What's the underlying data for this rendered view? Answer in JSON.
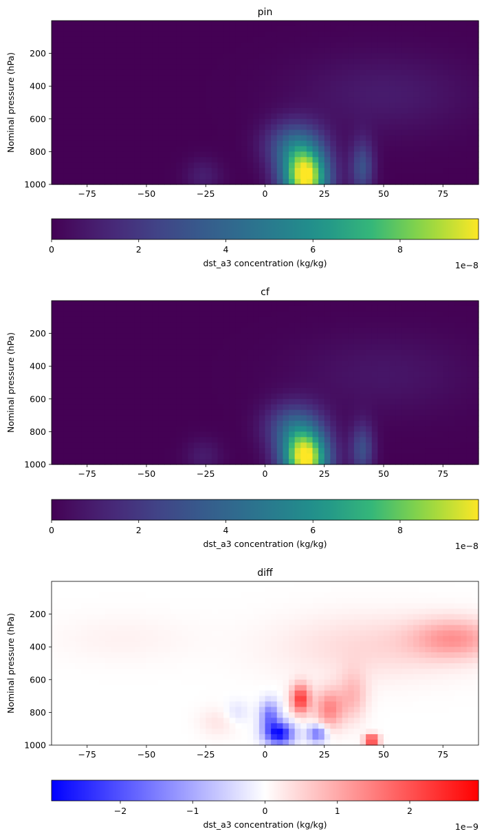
{
  "chart_data": [
    {
      "type": "heatmap",
      "title": "pin",
      "xlabel": "",
      "ylabel": "Nominal pressure (hPa)",
      "xlim": [
        -90,
        90
      ],
      "ylim": [
        1000,
        0
      ],
      "xticks": [
        -75,
        -50,
        -25,
        0,
        25,
        50,
        75
      ],
      "yticks": [
        200,
        400,
        600,
        800,
        1000
      ],
      "colormap": "viridis",
      "colorbar": {
        "label": "dst_a3 concentration (kg/kg)",
        "range": [
          0,
          9.8
        ],
        "ticks": [
          0,
          2,
          4,
          6,
          8
        ],
        "scale_label": "1e−8"
      },
      "grid": false,
      "hotspots": [
        {
          "lat": 17,
          "p": 960,
          "value": 9.8,
          "lat_spread": 10,
          "p_spread": 180
        },
        {
          "lat": 12,
          "p": 760,
          "value": 3.4,
          "lat_spread": 12,
          "p_spread": 150
        },
        {
          "lat": 41,
          "p": 900,
          "value": 3.0,
          "lat_spread": 5,
          "p_spread": 170
        },
        {
          "lat": -26,
          "p": 950,
          "value": 1.0,
          "lat_spread": 8,
          "p_spread": 110
        },
        {
          "lat": 50,
          "p": 450,
          "value": 0.9,
          "lat_spread": 38,
          "p_spread": 250
        }
      ]
    },
    {
      "type": "heatmap",
      "title": "cf",
      "xlabel": "",
      "ylabel": "Nominal pressure (hPa)",
      "xlim": [
        -90,
        90
      ],
      "ylim": [
        1000,
        0
      ],
      "xticks": [
        -75,
        -50,
        -25,
        0,
        25,
        50,
        75
      ],
      "yticks": [
        200,
        400,
        600,
        800,
        1000
      ],
      "colormap": "viridis",
      "colorbar": {
        "label": "dst_a3 concentration (kg/kg)",
        "range": [
          0,
          9.8
        ],
        "ticks": [
          0,
          2,
          4,
          6,
          8
        ],
        "scale_label": "1e−8"
      },
      "grid": false,
      "hotspots": [
        {
          "lat": 17,
          "p": 965,
          "value": 9.8,
          "lat_spread": 10,
          "p_spread": 170
        },
        {
          "lat": 12,
          "p": 770,
          "value": 3.2,
          "lat_spread": 12,
          "p_spread": 150
        },
        {
          "lat": 41,
          "p": 910,
          "value": 2.9,
          "lat_spread": 5,
          "p_spread": 160
        },
        {
          "lat": -26,
          "p": 950,
          "value": 0.9,
          "lat_spread": 8,
          "p_spread": 110
        },
        {
          "lat": 50,
          "p": 450,
          "value": 0.7,
          "lat_spread": 38,
          "p_spread": 250
        }
      ]
    },
    {
      "type": "heatmap",
      "title": "diff",
      "xlabel": "",
      "ylabel": "Nominal pressure (hPa)",
      "xlim": [
        -90,
        90
      ],
      "ylim": [
        1000,
        0
      ],
      "xticks": [
        -75,
        -50,
        -25,
        0,
        25,
        50,
        75
      ],
      "yticks": [
        200,
        400,
        600,
        800,
        1000
      ],
      "colormap": "bwr",
      "colorbar": {
        "label": "dst_a3 concentration (kg/kg)",
        "range": [
          -2.95,
          2.95
        ],
        "ticks": [
          -2,
          -1,
          0,
          1,
          2
        ],
        "scale_label": "1e−9"
      },
      "grid": false,
      "hotspots": [
        {
          "lat": 15,
          "p": 720,
          "value": 2.3,
          "lat_spread": 4,
          "p_spread": 90
        },
        {
          "lat": 27,
          "p": 780,
          "value": 1.4,
          "lat_spread": 6,
          "p_spread": 120
        },
        {
          "lat": 45,
          "p": 970,
          "value": 2.6,
          "lat_spread": 3,
          "p_spread": 35
        },
        {
          "lat": 37,
          "p": 700,
          "value": 0.8,
          "lat_spread": 6,
          "p_spread": 150
        },
        {
          "lat": 80,
          "p": 350,
          "value": 1.1,
          "lat_spread": 18,
          "p_spread": 120
        },
        {
          "lat": 45,
          "p": 400,
          "value": 0.45,
          "lat_spread": 40,
          "p_spread": 200
        },
        {
          "lat": -20,
          "p": 860,
          "value": 0.3,
          "lat_spread": 8,
          "p_spread": 90
        },
        {
          "lat": 6,
          "p": 930,
          "value": -2.8,
          "lat_spread": 6,
          "p_spread": 70
        },
        {
          "lat": 2,
          "p": 820,
          "value": -1.6,
          "lat_spread": 4,
          "p_spread": 90
        },
        {
          "lat": 22,
          "p": 930,
          "value": -1.7,
          "lat_spread": 4,
          "p_spread": 55
        },
        {
          "lat": -12,
          "p": 800,
          "value": -0.35,
          "lat_spread": 5,
          "p_spread": 70
        },
        {
          "lat": -60,
          "p": 350,
          "value": 0.15,
          "lat_spread": 30,
          "p_spread": 150
        }
      ]
    }
  ]
}
